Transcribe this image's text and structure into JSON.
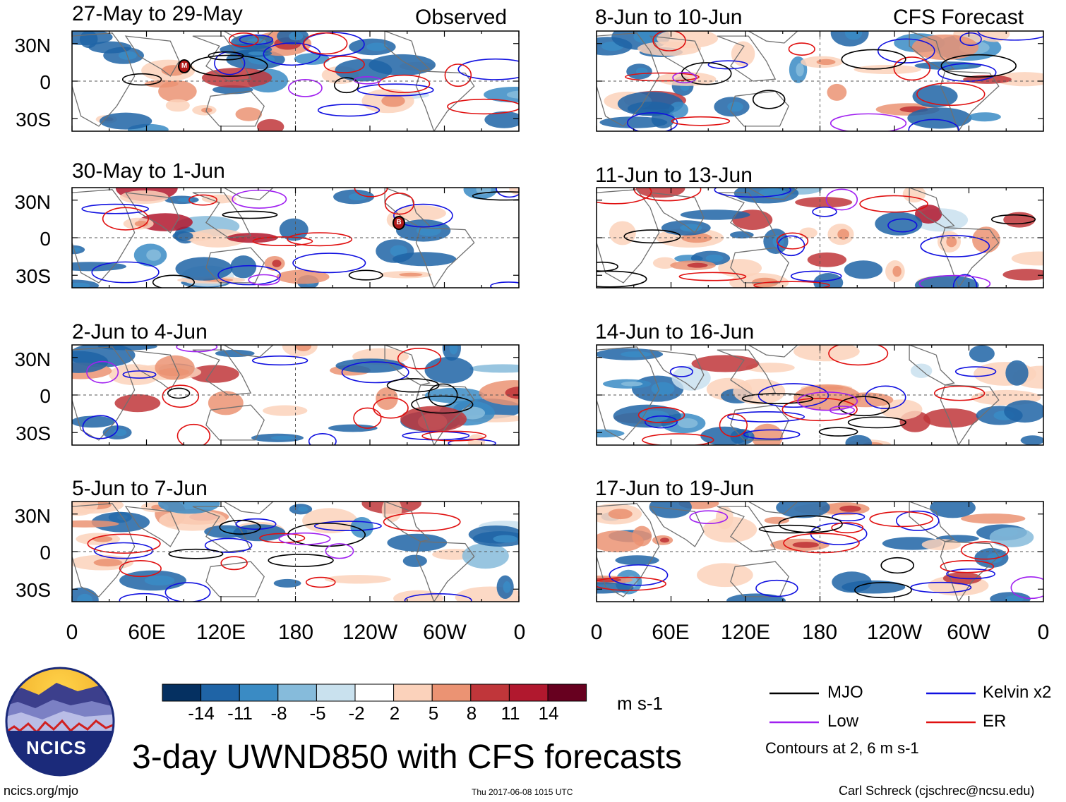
{
  "header": {
    "observed_label": "Observed",
    "forecast_label": "CFS Forecast"
  },
  "panels": {
    "observed": [
      {
        "title": "27-May to 29-May"
      },
      {
        "title": "30-May to 1-Jun"
      },
      {
        "title": "2-Jun to 4-Jun"
      },
      {
        "title": "5-Jun to 7-Jun"
      }
    ],
    "forecast": [
      {
        "title": "8-Jun to 10-Jun"
      },
      {
        "title": "11-Jun to 13-Jun"
      },
      {
        "title": "14-Jun to 16-Jun"
      },
      {
        "title": "17-Jun to 19-Jun"
      }
    ]
  },
  "axes": {
    "lat_labels": [
      "30N",
      "0",
      "30S"
    ],
    "lon_labels": [
      "0",
      "60E",
      "120E",
      "180",
      "120W",
      "60W",
      "0"
    ]
  },
  "storm_markers": {
    "first": "M",
    "second": "B"
  },
  "colorbar": {
    "ticks": [
      "-14",
      "-11",
      "-8",
      "-5",
      "-2",
      "2",
      "5",
      "8",
      "11",
      "14"
    ],
    "colors": [
      "#053061",
      "#1f64a6",
      "#3a8bc4",
      "#86bbdb",
      "#c9e1ee",
      "#ffffff",
      "#fbd2bb",
      "#eb9373",
      "#c0363a",
      "#b1182e",
      "#67001f"
    ],
    "units": "m s-1"
  },
  "legend": {
    "items": [
      {
        "label": "MJO",
        "color": "#000000"
      },
      {
        "label": "Kelvin x2",
        "color": "#1010e0"
      },
      {
        "label": "Low",
        "color": "#a020f0"
      },
      {
        "label": "ER",
        "color": "#e01010"
      }
    ],
    "contour_note": "Contours at 2, 6 m s-1"
  },
  "title": "3-day UWND850 with CFS forecasts",
  "logo": {
    "text": "NCICS"
  },
  "footer": {
    "left": "ncics.org/mjo",
    "center": "Thu 2017-06-08 1015 UTC",
    "right": "Carl Schreck (cjschrec@ncsu.edu)"
  }
}
